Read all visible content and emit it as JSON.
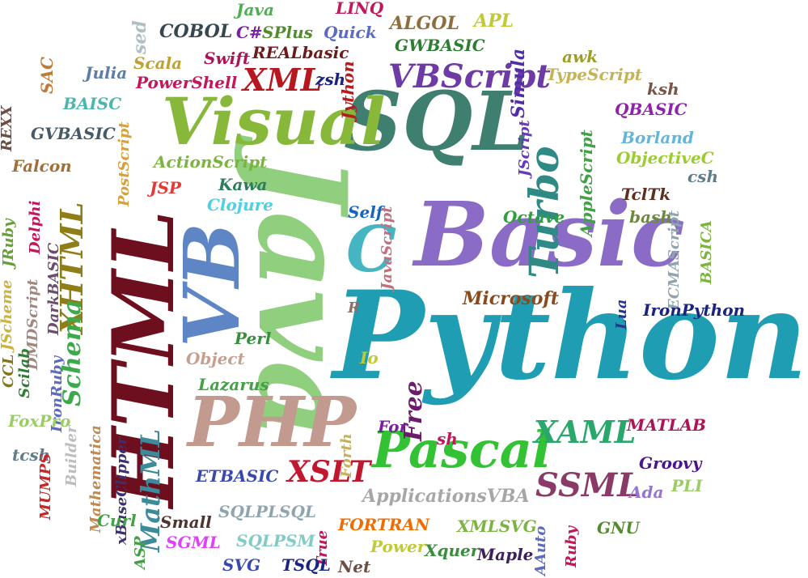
{
  "words": [
    {
      "text": "Python",
      "color": "#1e9db3"
    },
    {
      "text": "Java",
      "color": "#8fcf7d"
    },
    {
      "text": "Basic",
      "color": "#8a6cc6"
    },
    {
      "text": "SQL",
      "color": "#3f7f70"
    },
    {
      "text": "HTML",
      "color": "#6e0f1f"
    },
    {
      "text": "VB",
      "color": "#5f86c4"
    },
    {
      "text": "Visual",
      "color": "#87b83a"
    },
    {
      "text": "PHP",
      "color": "#c39a8f"
    },
    {
      "text": "Pascal",
      "color": "#33c233"
    },
    {
      "text": "C",
      "color": "#45b5c2"
    },
    {
      "text": "VBScript",
      "color": "#6e3aa5"
    },
    {
      "text": "Turbo",
      "color": "#2f8a86"
    },
    {
      "text": "XHTML",
      "color": "#8f7d17"
    },
    {
      "text": "Schema",
      "color": "#3caa4a"
    },
    {
      "text": "MathML",
      "color": "#3d8a9a"
    },
    {
      "text": "XSLT",
      "color": "#c1182f"
    },
    {
      "text": "SSML",
      "color": "#8a3a67"
    },
    {
      "text": "XAML",
      "color": "#2aa76a"
    },
    {
      "text": "XML",
      "color": "#b5181e"
    },
    {
      "text": "Free",
      "color": "#6b1c6b"
    },
    {
      "text": "Microsoft",
      "color": "#8a4a1c"
    },
    {
      "text": "ApplicationsVBA",
      "color": "#a6a6a6"
    },
    {
      "text": "Java",
      "color": "#4caf50"
    },
    {
      "text": "LINQ",
      "color": "#c2185b"
    },
    {
      "text": "ALGOL",
      "color": "#8d6e3f"
    },
    {
      "text": "APL",
      "color": "#c0ca33"
    },
    {
      "text": "sed",
      "color": "#b0bec5"
    },
    {
      "text": "COBOL",
      "color": "#37474f"
    },
    {
      "text": "C#",
      "color": "#7b1fa2"
    },
    {
      "text": "SPlus",
      "color": "#558b2f"
    },
    {
      "text": "Quick",
      "color": "#5c6bc0"
    },
    {
      "text": "GWBASIC",
      "color": "#2e7d32"
    },
    {
      "text": "Simula",
      "color": "#512da8"
    },
    {
      "text": "awk",
      "color": "#9e9d24"
    },
    {
      "text": "Scala",
      "color": "#c0a030"
    },
    {
      "text": "Swift",
      "color": "#ad1457"
    },
    {
      "text": "REALbasic",
      "color": "#6a1b1b"
    },
    {
      "text": "zsh",
      "color": "#1a237e"
    },
    {
      "text": "Jython",
      "color": "#b71c1c"
    },
    {
      "text": "SAC",
      "color": "#c07a3a"
    },
    {
      "text": "Julia",
      "color": "#5d7fa3"
    },
    {
      "text": "PowerShell",
      "color": "#c2185b"
    },
    {
      "text": "TypeScript",
      "color": "#c5b358"
    },
    {
      "text": "ksh",
      "color": "#795548"
    },
    {
      "text": "BAISC",
      "color": "#4db6ac"
    },
    {
      "text": "QBASIC",
      "color": "#8e24aa"
    },
    {
      "text": "REXX",
      "color": "#6d4c41"
    },
    {
      "text": "GVBASIC",
      "color": "#455a64"
    },
    {
      "text": "JScript",
      "color": "#673ab7"
    },
    {
      "text": "AppleScript",
      "color": "#43a047"
    },
    {
      "text": "Borland",
      "color": "#64b5d6"
    },
    {
      "text": "PostScript",
      "color": "#d4a040"
    },
    {
      "text": "ActionScript",
      "color": "#7cb342"
    },
    {
      "text": "ObjectiveC",
      "color": "#9ccc2e"
    },
    {
      "text": "Falcon",
      "color": "#a0703a"
    },
    {
      "text": "csh",
      "color": "#607d8b"
    },
    {
      "text": "JSP",
      "color": "#e53935"
    },
    {
      "text": "Kawa",
      "color": "#2e7d5e"
    },
    {
      "text": "TclTk",
      "color": "#5d2f1f"
    },
    {
      "text": "JRuby",
      "color": "#689f38"
    },
    {
      "text": "Delphi",
      "color": "#c2185b"
    },
    {
      "text": "Clojure",
      "color": "#4dd0e1"
    },
    {
      "text": "Self",
      "color": "#1565c0"
    },
    {
      "text": "JavaScript",
      "color": "#c07080"
    },
    {
      "text": "Octave",
      "color": "#2e9e3e"
    },
    {
      "text": "bash",
      "color": "#6d8a3a"
    },
    {
      "text": "ECMAScript",
      "color": "#90a4ae"
    },
    {
      "text": "BASICA",
      "color": "#7cb342"
    },
    {
      "text": "DarkBASIC",
      "color": "#6d4c6d"
    },
    {
      "text": "JScheme",
      "color": "#cdb33a"
    },
    {
      "text": "DMDScript",
      "color": "#a1887f"
    },
    {
      "text": "R",
      "color": "#8d6e63"
    },
    {
      "text": "Lua",
      "color": "#283593"
    },
    {
      "text": "IronPython",
      "color": "#1a237e"
    },
    {
      "text": "Perl",
      "color": "#388e3c"
    },
    {
      "text": "Object",
      "color": "#c5a090"
    },
    {
      "text": "Io",
      "color": "#c0ca33"
    },
    {
      "text": "CCL",
      "color": "#827717"
    },
    {
      "text": "Scilab",
      "color": "#2e7d32"
    },
    {
      "text": "IronRuby",
      "color": "#5c6bc0"
    },
    {
      "text": "Lazarus",
      "color": "#43a047"
    },
    {
      "text": "FoxPro",
      "color": "#9ccc65"
    },
    {
      "text": "Builder",
      "color": "#bdbdbd"
    },
    {
      "text": "Mathematica",
      "color": "#c08a50"
    },
    {
      "text": "xBaseClipper",
      "color": "#3e2f6e"
    },
    {
      "text": "For",
      "color": "#7b1fa2"
    },
    {
      "text": "Forth",
      "color": "#c5b358"
    },
    {
      "text": "sh",
      "color": "#c2185b"
    },
    {
      "text": "MATLAB",
      "color": "#ad1457"
    },
    {
      "text": "tcsh",
      "color": "#607d8b"
    },
    {
      "text": "MUMPS",
      "color": "#c62828"
    },
    {
      "text": "ETBASIC",
      "color": "#3949ab"
    },
    {
      "text": "Groovy",
      "color": "#4a148c"
    },
    {
      "text": "Ada",
      "color": "#9575cd"
    },
    {
      "text": "PLI",
      "color": "#9ccc65"
    },
    {
      "text": "Curl",
      "color": "#43a047"
    },
    {
      "text": "Small",
      "color": "#4e342e"
    },
    {
      "text": "SQLPLSQL",
      "color": "#90a4ae"
    },
    {
      "text": "FORTRAN",
      "color": "#ef6c00"
    },
    {
      "text": "XMLSVG",
      "color": "#7cb342"
    },
    {
      "text": "AAuto",
      "color": "#5c6bc0"
    },
    {
      "text": "Ruby",
      "color": "#c2185b"
    },
    {
      "text": "GNU",
      "color": "#558b2f"
    },
    {
      "text": "ASP",
      "color": "#43a047"
    },
    {
      "text": "SGML",
      "color": "#e040fb"
    },
    {
      "text": "SQLPSM",
      "color": "#80cbc4"
    },
    {
      "text": "True",
      "color": "#c2185b"
    },
    {
      "text": "Power",
      "color": "#c0ca33"
    },
    {
      "text": "Xquer",
      "color": "#388e3c"
    },
    {
      "text": "Maple",
      "color": "#3e1f5e"
    },
    {
      "text": "SVG",
      "color": "#3949ab"
    },
    {
      "text": "TSQL",
      "color": "#1a237e"
    },
    {
      "text": "Net",
      "color": "#6d4c41"
    }
  ]
}
